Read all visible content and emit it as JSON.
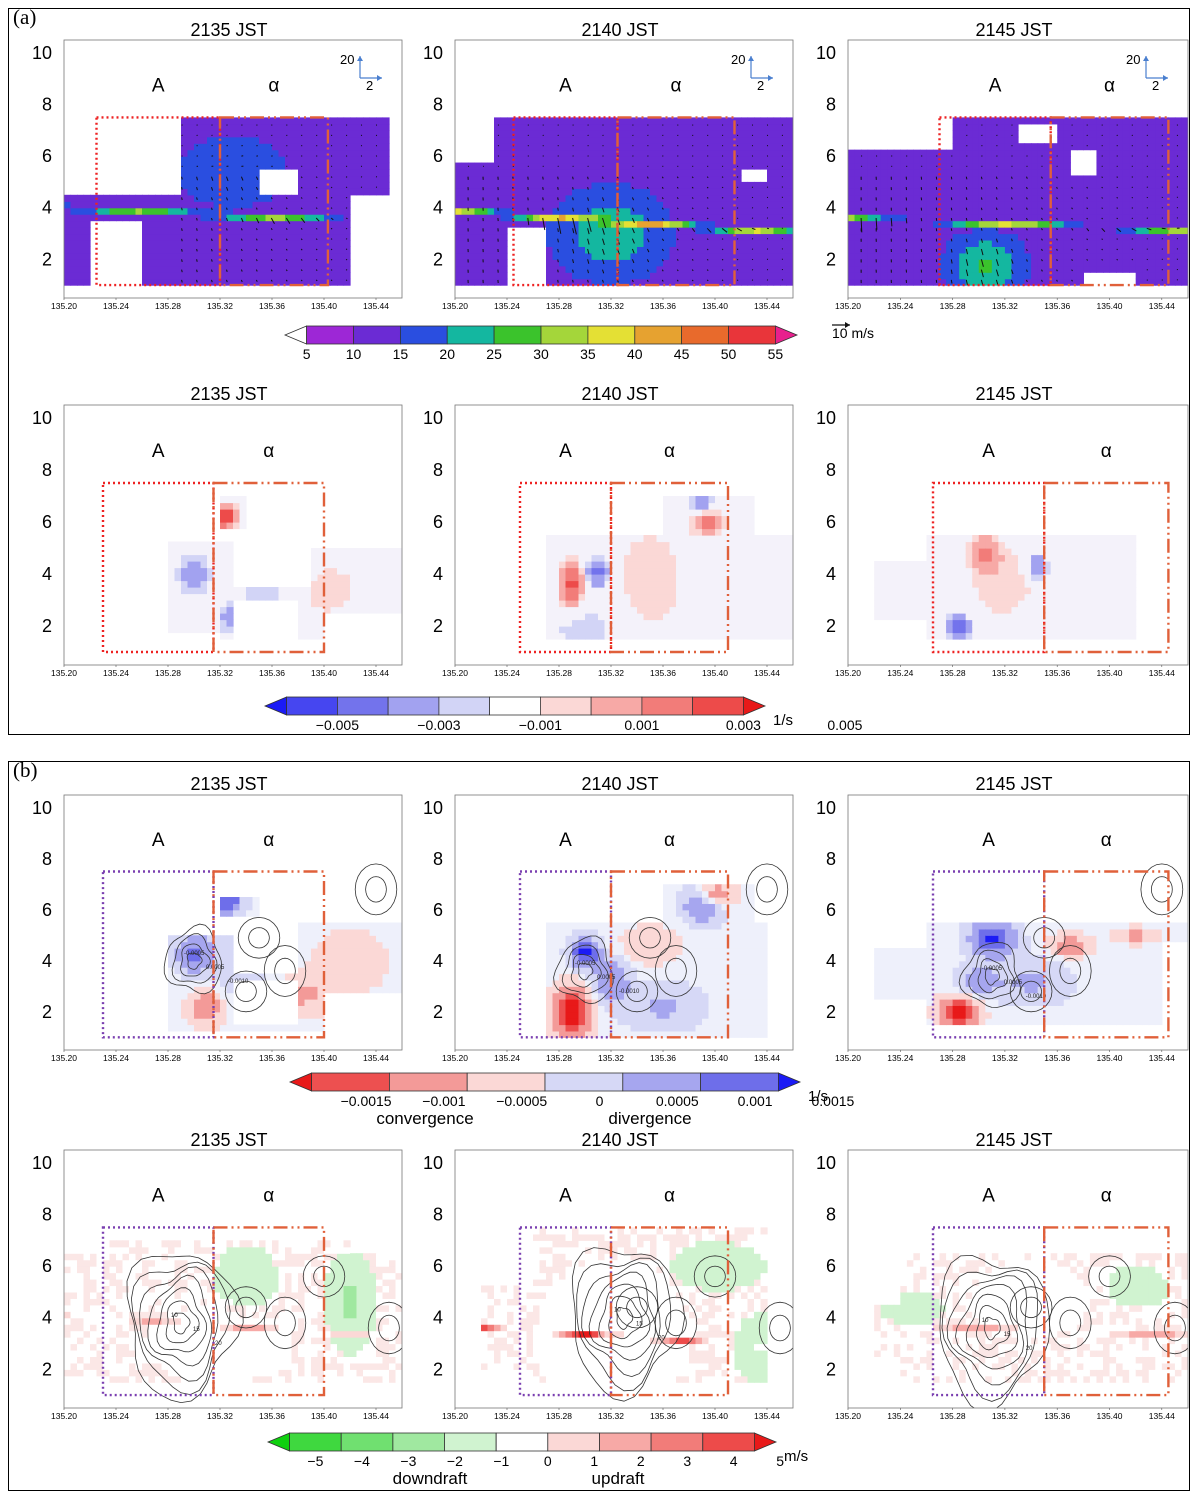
{
  "figure": {
    "part_a_label": "(a)",
    "part_b_label": "(b)"
  },
  "colors": {
    "box_A_a": "#ee2222",
    "box_A_b": "#7a3fb0",
    "box_alpha": "#e0603a",
    "wind_arrow": "#111111",
    "compass": "#4a7fcf"
  },
  "chart_data": [
    {
      "type": "heatmap",
      "panel": "a-row1",
      "title_times": [
        "2135 JST",
        "2140 JST",
        "2145 JST"
      ],
      "region_labels": [
        "A",
        "α"
      ],
      "x_ticks": [
        "135.20",
        "135.24",
        "135.28",
        "135.32",
        "135.36",
        "135.40",
        "135.44"
      ],
      "y_ticks": [
        "2",
        "4",
        "6",
        "8",
        "10"
      ],
      "xlim": [
        135.2,
        135.46
      ],
      "ylim": [
        0.5,
        10.5
      ],
      "quantity": "horizontal wind speed with wind vectors",
      "vector_scale_label": "10 m/s",
      "compass_labels": [
        "20",
        "2"
      ],
      "colorbar": {
        "ticks": [
          "5",
          "10",
          "15",
          "20",
          "25",
          "30",
          "35",
          "40",
          "45",
          "50",
          "55"
        ],
        "unit": "",
        "colors": [
          "#ffffff",
          "#9d27d6",
          "#6b2bd4",
          "#2a4ee0",
          "#14b7a0",
          "#3bc32c",
          "#a4d63a",
          "#e4e034",
          "#e6a230",
          "#e86a2c",
          "#e9353a",
          "#e8208d"
        ]
      },
      "peak_values": [
        28,
        37,
        38
      ]
    },
    {
      "type": "heatmap",
      "panel": "a-row2",
      "title_times": [
        "2135 JST",
        "2140 JST",
        "2145 JST"
      ],
      "region_labels": [
        "A",
        "α"
      ],
      "x_ticks": [
        "135.20",
        "135.24",
        "135.28",
        "135.32",
        "135.36",
        "135.40",
        "135.44"
      ],
      "y_ticks": [
        "2",
        "4",
        "6",
        "8",
        "10"
      ],
      "xlim": [
        135.2,
        135.46
      ],
      "ylim": [
        0.5,
        10.5
      ],
      "quantity": "vorticity",
      "colorbar": {
        "ticks": [
          "−0.005",
          "−0.003",
          "−0.001",
          "0.001",
          "0.003",
          "0.005"
        ],
        "unit": "1/s",
        "colors": [
          "#1b1bf5",
          "#4646f0",
          "#7373ec",
          "#a2a2f0",
          "#d2d4f6",
          "#ffffff",
          "#fbd8d6",
          "#f7a9a6",
          "#f27c79",
          "#ed4b4a",
          "#e81919"
        ]
      }
    },
    {
      "type": "heatmap",
      "panel": "b-row1",
      "title_times": [
        "2135 JST",
        "2140 JST",
        "2145 JST"
      ],
      "region_labels": [
        "A",
        "α"
      ],
      "x_ticks": [
        "135.20",
        "135.24",
        "135.28",
        "135.32",
        "135.36",
        "135.40",
        "135.44"
      ],
      "y_ticks": [
        "2",
        "4",
        "6",
        "8",
        "10"
      ],
      "xlim": [
        135.2,
        135.46
      ],
      "ylim": [
        0.5,
        10.5
      ],
      "quantity": "horizontal divergence",
      "contour_labels": [
        "-0.0005",
        "0.0005",
        "-0.0010"
      ],
      "colorbar": {
        "ticks": [
          "−0.0015",
          "−0.001",
          "−0.0005",
          "0",
          "0.0005",
          "0.001",
          "0.0015"
        ],
        "unit": "1/s",
        "sublabels": [
          "convergence",
          "divergence"
        ],
        "colors": [
          "#e81919",
          "#ed5050",
          "#f39a98",
          "#fbd8d6",
          "#d6d8f6",
          "#a6a6ef",
          "#6e6eea",
          "#1b1bf5"
        ]
      }
    },
    {
      "type": "heatmap",
      "panel": "b-row2",
      "title_times": [
        "2135 JST",
        "2140 JST",
        "2145 JST"
      ],
      "region_labels": [
        "A",
        "α"
      ],
      "x_ticks": [
        "135.20",
        "135.24",
        "135.28",
        "135.32",
        "135.36",
        "135.40",
        "135.44"
      ],
      "y_ticks": [
        "2",
        "4",
        "6",
        "8",
        "10"
      ],
      "xlim": [
        135.2,
        135.46
      ],
      "ylim": [
        0.5,
        10.5
      ],
      "quantity": "vertical velocity with reflectivity contours",
      "contour_labels": [
        "10",
        "15",
        "20",
        "25",
        "30",
        "35",
        "40"
      ],
      "colorbar": {
        "ticks": [
          "−5",
          "−4",
          "−3",
          "−2",
          "−1",
          "0",
          "1",
          "2",
          "3",
          "4",
          "5"
        ],
        "unit": "m/s",
        "sublabels": [
          "downdraft",
          "updraft"
        ],
        "colors": [
          "#0fd00f",
          "#3fd83f",
          "#70e070",
          "#a0e8a0",
          "#d0f3d0",
          "#ffffff",
          "#fbd8d6",
          "#f7a9a6",
          "#f27c79",
          "#ed4b4a",
          "#e81919"
        ]
      }
    }
  ]
}
